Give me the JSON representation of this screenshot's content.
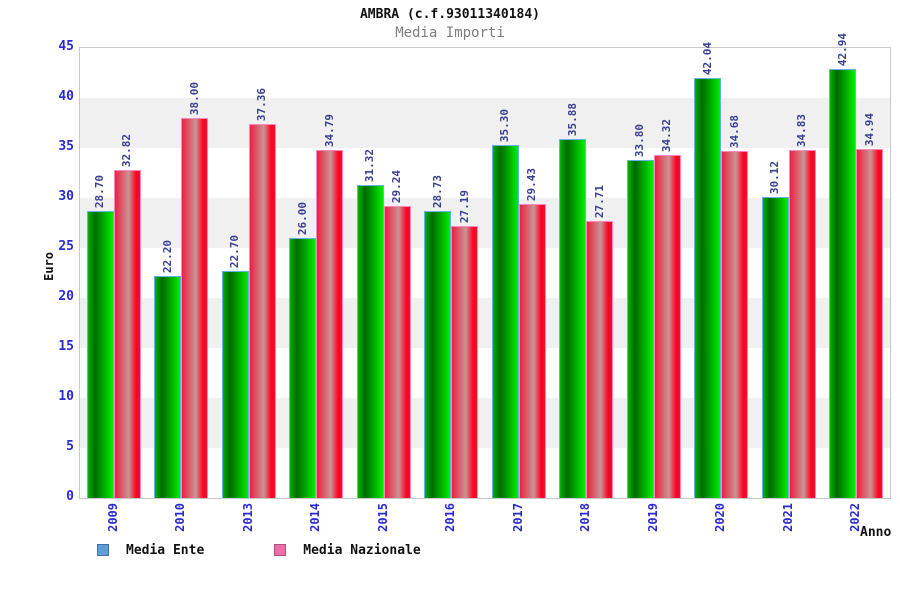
{
  "chart_data": {
    "type": "bar",
    "title": "AMBRA (c.f.93011340184)",
    "subtitle": "Media Importi",
    "xlabel": "Anno",
    "ylabel": "Euro",
    "ylim": [
      0,
      45
    ],
    "ytick_step": 5,
    "yticks": [
      0,
      5,
      10,
      15,
      20,
      25,
      30,
      35,
      40,
      45
    ],
    "grid": "alternating-horizontal-bands",
    "band_colors": [
      "#ffffff",
      "#f0f0f0"
    ],
    "legend_position": "bottom-left",
    "categories": [
      "2009",
      "2010",
      "2013",
      "2014",
      "2015",
      "2016",
      "2017",
      "2018",
      "2019",
      "2020",
      "2021",
      "2022"
    ],
    "series": [
      {
        "name": "Media Ente",
        "legend_color": "#5f9ed6",
        "bar_color": "#00cc00",
        "values": [
          28.7,
          22.2,
          22.7,
          26.0,
          31.32,
          28.73,
          35.3,
          35.88,
          33.8,
          42.04,
          30.12,
          42.94
        ]
      },
      {
        "name": "Media Nazionale",
        "legend_color": "#ee6fa6",
        "bar_color": "#ee1133",
        "values": [
          32.82,
          38.0,
          37.36,
          34.79,
          29.24,
          27.19,
          29.43,
          27.71,
          34.32,
          34.68,
          34.83,
          34.94
        ]
      }
    ],
    "value_label_color": "#3a3f93",
    "axis_label_color": "#2a2ad2"
  }
}
